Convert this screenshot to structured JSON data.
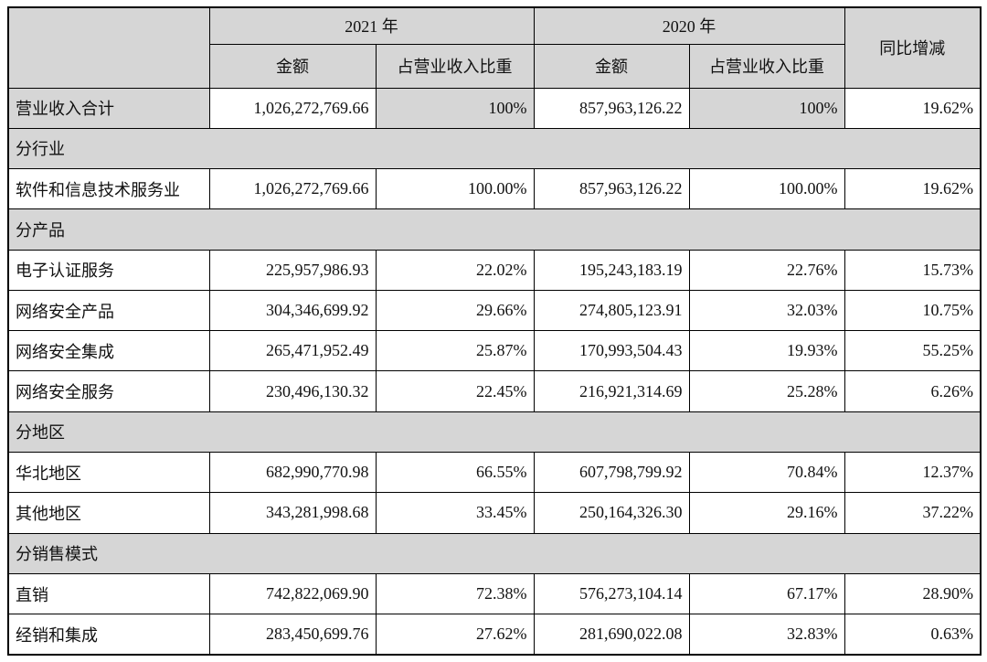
{
  "table": {
    "header": {
      "year_2021": "2021 年",
      "year_2020": "2020 年",
      "yoy": "同比增减",
      "amount": "金额",
      "share": "占营业收入比重"
    },
    "rows": [
      {
        "type": "data",
        "shaded": true,
        "label": "营业收入合计",
        "amount_2021": "1,026,272,769.66",
        "share_2021": "100%",
        "amount_2020": "857,963,126.22",
        "share_2020": "100%",
        "yoy": "19.62%"
      },
      {
        "type": "section",
        "label": "分行业"
      },
      {
        "type": "data",
        "shaded": false,
        "label": "软件和信息技术服务业",
        "amount_2021": "1,026,272,769.66",
        "share_2021": "100.00%",
        "amount_2020": "857,963,126.22",
        "share_2020": "100.00%",
        "yoy": "19.62%"
      },
      {
        "type": "section",
        "label": "分产品"
      },
      {
        "type": "data",
        "shaded": false,
        "label": "电子认证服务",
        "amount_2021": "225,957,986.93",
        "share_2021": "22.02%",
        "amount_2020": "195,243,183.19",
        "share_2020": "22.76%",
        "yoy": "15.73%"
      },
      {
        "type": "data",
        "shaded": false,
        "label": "网络安全产品",
        "amount_2021": "304,346,699.92",
        "share_2021": "29.66%",
        "amount_2020": "274,805,123.91",
        "share_2020": "32.03%",
        "yoy": "10.75%"
      },
      {
        "type": "data",
        "shaded": false,
        "label": "网络安全集成",
        "amount_2021": "265,471,952.49",
        "share_2021": "25.87%",
        "amount_2020": "170,993,504.43",
        "share_2020": "19.93%",
        "yoy": "55.25%"
      },
      {
        "type": "data",
        "shaded": false,
        "label": "网络安全服务",
        "amount_2021": "230,496,130.32",
        "share_2021": "22.45%",
        "amount_2020": "216,921,314.69",
        "share_2020": "25.28%",
        "yoy": "6.26%"
      },
      {
        "type": "section",
        "label": "分地区"
      },
      {
        "type": "data",
        "shaded": false,
        "label": "华北地区",
        "amount_2021": "682,990,770.98",
        "share_2021": "66.55%",
        "amount_2020": "607,798,799.92",
        "share_2020": "70.84%",
        "yoy": "12.37%"
      },
      {
        "type": "data",
        "shaded": false,
        "label": "其他地区",
        "amount_2021": "343,281,998.68",
        "share_2021": "33.45%",
        "amount_2020": "250,164,326.30",
        "share_2020": "29.16%",
        "yoy": "37.22%"
      },
      {
        "type": "section",
        "label": "分销售模式"
      },
      {
        "type": "data",
        "shaded": false,
        "label": "直销",
        "amount_2021": "742,822,069.90",
        "share_2021": "72.38%",
        "amount_2020": "576,273,104.14",
        "share_2020": "67.17%",
        "yoy": "28.90%"
      },
      {
        "type": "data",
        "shaded": false,
        "label": "经销和集成",
        "amount_2021": "283,450,699.76",
        "share_2021": "27.62%",
        "amount_2020": "281,690,022.08",
        "share_2020": "32.83%",
        "yoy": "0.63%"
      }
    ],
    "colors": {
      "shading": "#d6d6d6",
      "border": "#000000",
      "background": "#ffffff"
    }
  }
}
